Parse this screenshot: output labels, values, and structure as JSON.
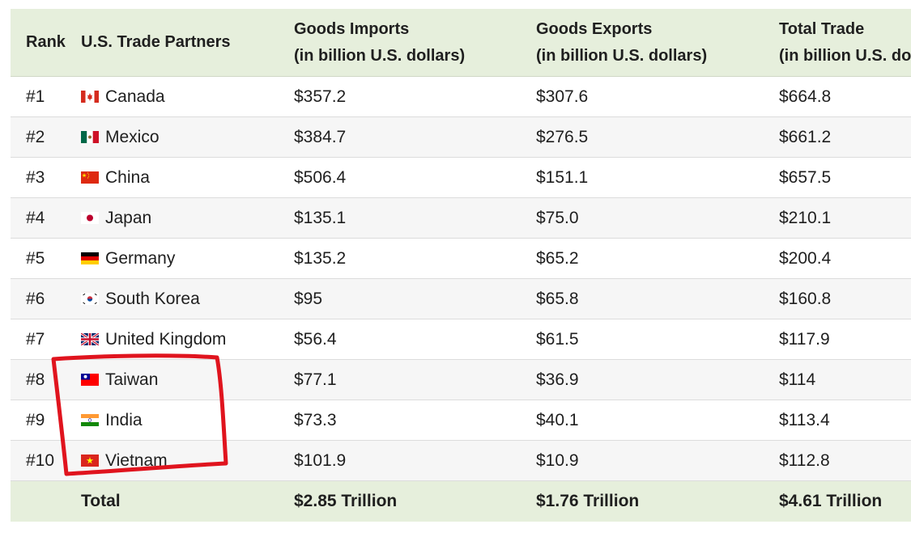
{
  "header": {
    "rank": "Rank",
    "partner": "U.S. Trade Partners",
    "imports_l1": "Goods Imports",
    "imports_l2": "(in billion U.S. dollars)",
    "exports_l1": "Goods Exports",
    "exports_l2": "(in billion U.S. dollars)",
    "total_l1": "Total Trade",
    "total_l2": "(in billion U.S. do"
  },
  "rows": [
    {
      "rank": "#1",
      "country": "Canada",
      "flag": "canada-flag-icon",
      "imports": "$357.2",
      "exports": "$307.6",
      "total": "$664.8"
    },
    {
      "rank": "#2",
      "country": "Mexico",
      "flag": "mexico-flag-icon",
      "imports": "$384.7",
      "exports": "$276.5",
      "total": "$661.2"
    },
    {
      "rank": "#3",
      "country": "China",
      "flag": "china-flag-icon",
      "imports": "$506.4",
      "exports": "$151.1",
      "total": "$657.5"
    },
    {
      "rank": "#4",
      "country": "Japan",
      "flag": "japan-flag-icon",
      "imports": "$135.1",
      "exports": "$75.0",
      "total": "$210.1"
    },
    {
      "rank": "#5",
      "country": "Germany",
      "flag": "germany-flag-icon",
      "imports": "$135.2",
      "exports": "$65.2",
      "total": "$200.4"
    },
    {
      "rank": "#6",
      "country": "South Korea",
      "flag": "south-korea-flag-icon",
      "imports": "$95",
      "exports": "$65.8",
      "total": "$160.8"
    },
    {
      "rank": "#7",
      "country": "United Kingdom",
      "flag": "uk-flag-icon",
      "imports": "$56.4",
      "exports": "$61.5",
      "total": "$117.9"
    },
    {
      "rank": "#8",
      "country": "Taiwan",
      "flag": "taiwan-flag-icon",
      "imports": "$77.1",
      "exports": "$36.9",
      "total": "$114"
    },
    {
      "rank": "#9",
      "country": "India",
      "flag": "india-flag-icon",
      "imports": "$73.3",
      "exports": "$40.1",
      "total": "$113.4"
    },
    {
      "rank": "#10",
      "country": "Vietnam",
      "flag": "vietnam-flag-icon",
      "imports": "$101.9",
      "exports": "$10.9",
      "total": "$112.8"
    }
  ],
  "total_row": {
    "label": "Total",
    "imports": "$2.85 Trillion",
    "exports": "$1.76 Trillion",
    "total": "$4.61 Trillion"
  },
  "colors": {
    "header_bg": "#e6efdc",
    "alt_row_bg": "#f6f6f6",
    "highlight_stroke": "#e0141e"
  }
}
